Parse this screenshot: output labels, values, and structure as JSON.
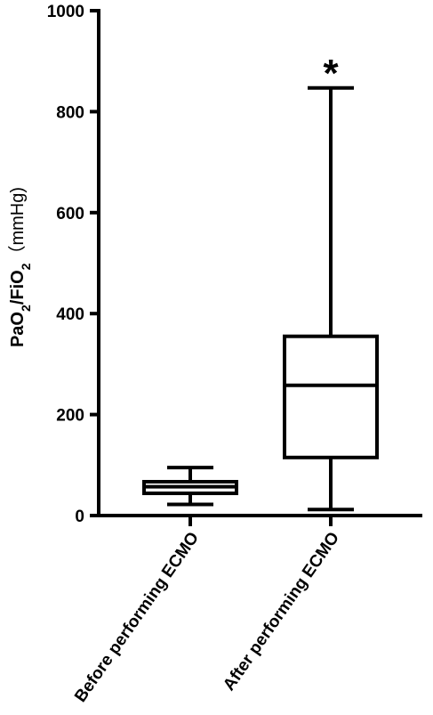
{
  "chart_data": {
    "type": "box",
    "ylabel": {
      "main": "PaO",
      "sub1": "2",
      "mid": "/FiO",
      "sub2": "2",
      "unit": "（mmHg)"
    },
    "ylim": [
      0,
      1000
    ],
    "yticks": [
      "0",
      "200",
      "400",
      "600",
      "800",
      "1000"
    ],
    "categories": [
      "Before performing ECMO",
      "After performing ECMO"
    ],
    "boxes": [
      {
        "min": 22,
        "q1": 44,
        "median": 57,
        "q3": 67,
        "max": 95,
        "annotation": ""
      },
      {
        "min": 12,
        "q1": 115,
        "median": 258,
        "q3": 355,
        "max": 847,
        "annotation": "*"
      }
    ],
    "grid": false,
    "legend": "none"
  }
}
